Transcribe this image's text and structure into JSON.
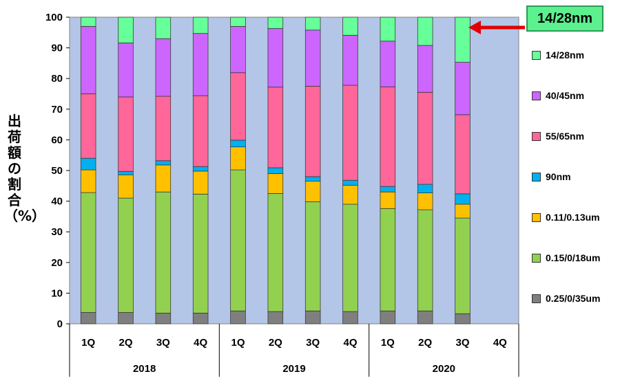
{
  "chart_data": {
    "type": "bar",
    "stacked": true,
    "ylabel": "出荷額の割合（%）",
    "ylim": [
      0,
      100
    ],
    "yticks": [
      0,
      10,
      20,
      30,
      40,
      50,
      60,
      70,
      80,
      90,
      100
    ],
    "grid": false,
    "plot_background": "#b4c6e7",
    "legend_position": "right",
    "groups": [
      {
        "label": "2018",
        "quarters": [
          "1Q",
          "2Q",
          "3Q",
          "4Q"
        ]
      },
      {
        "label": "2019",
        "quarters": [
          "1Q",
          "2Q",
          "3Q",
          "4Q"
        ]
      },
      {
        "label": "2020",
        "quarters": [
          "1Q",
          "2Q",
          "3Q",
          "4Q"
        ]
      }
    ],
    "series": [
      {
        "name": "0.25/0/35um",
        "color": "#7f7f7f",
        "values": [
          3.7,
          3.7,
          3.5,
          3.5,
          4.2,
          4.0,
          4.2,
          4.0,
          4.2,
          4.2,
          3.3,
          null
        ]
      },
      {
        "name": "0.15/0/18um",
        "color": "#92d050",
        "values": [
          39.1,
          37.3,
          39.5,
          38.8,
          46.0,
          38.5,
          35.6,
          35.0,
          33.4,
          33.0,
          31.2,
          null
        ]
      },
      {
        "name": "0.11/0.13um",
        "color": "#ffc000",
        "values": [
          7.4,
          7.6,
          8.8,
          7.5,
          7.5,
          6.5,
          6.7,
          6.2,
          5.4,
          5.5,
          4.5,
          null
        ]
      },
      {
        "name": "90nm",
        "color": "#00b0f0",
        "values": [
          3.8,
          1.1,
          1.4,
          1.5,
          2.2,
          1.9,
          1.5,
          1.6,
          1.8,
          2.8,
          3.4,
          null
        ]
      },
      {
        "name": "55/65nm",
        "color": "#ff6699",
        "values": [
          21.0,
          24.3,
          21.0,
          23.1,
          22.0,
          26.3,
          29.5,
          31.0,
          32.5,
          30.0,
          25.8,
          null
        ]
      },
      {
        "name": "40/45nm",
        "color": "#cc66ff",
        "values": [
          22.0,
          17.6,
          18.8,
          20.3,
          15.1,
          19.1,
          18.3,
          16.3,
          14.9,
          15.3,
          17.1,
          null
        ]
      },
      {
        "name": "14/28nm",
        "color": "#66ff99",
        "values": [
          3.0,
          8.4,
          7.0,
          5.3,
          3.0,
          3.7,
          4.2,
          5.9,
          7.8,
          9.2,
          14.7,
          null
        ]
      }
    ],
    "annotation": {
      "text": "14/28nm",
      "points_to": "2020 3Q"
    }
  }
}
